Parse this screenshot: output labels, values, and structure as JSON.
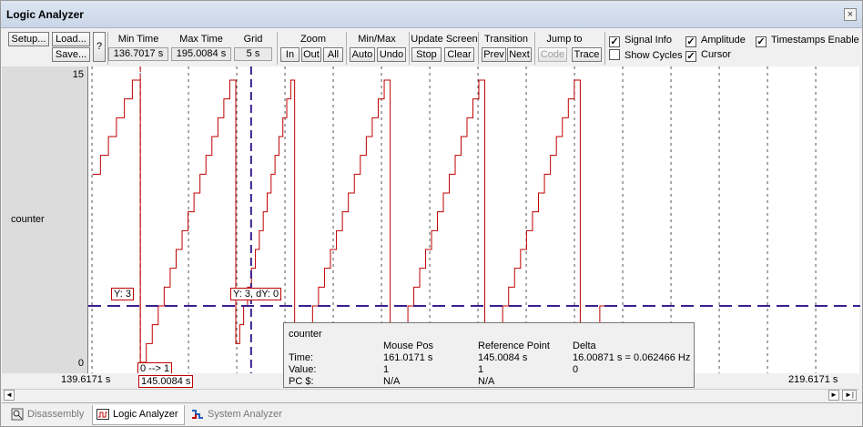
{
  "window": {
    "title": "Logic Analyzer",
    "close": "×"
  },
  "toolbar": {
    "setup": "Setup...",
    "load": "Load...",
    "save": "Save...",
    "help": "?",
    "min_time_label": "Min Time",
    "min_time": "136.7017 s",
    "max_time_label": "Max Time",
    "max_time": "195.0084 s",
    "grid_label": "Grid",
    "grid": "5 s",
    "zoom_label": "Zoom",
    "zoom_in": "In",
    "zoom_out": "Out",
    "zoom_all": "All",
    "minmax_label": "Min/Max",
    "auto": "Auto",
    "undo": "Undo",
    "update_label": "Update Screen",
    "stop": "Stop",
    "clear": "Clear",
    "transition_label": "Transition",
    "prev": "Prev",
    "next": "Next",
    "jump_label": "Jump to",
    "code": "Code",
    "trace": "Trace",
    "signal_info": "Signal Info",
    "amplitude": "Amplitude",
    "timestamps": "Timestamps Enable",
    "show_cycles": "Show Cycles",
    "cursor": "Cursor",
    "checked": "✓"
  },
  "signal": {
    "name": "counter",
    "max": "15",
    "min": "0"
  },
  "time_axis": {
    "left": "139.6171 s",
    "right": "219.6171 s",
    "cursor_time": "145.0084 s"
  },
  "markers": {
    "y_ref": "Y: 3",
    "y_mouse": "Y: 3, dY: 0",
    "transition": "0 --> 1"
  },
  "info": {
    "signal": "counter",
    "h_mouse": "Mouse Pos",
    "h_ref": "Reference Point",
    "h_delta": "Delta",
    "r_time": "Time:",
    "r_value": "Value:",
    "r_pc": "PC $:",
    "time_mouse": "161.0171 s",
    "time_ref": "145.0084 s",
    "time_delta": "16.00871 s = 0.062466 Hz",
    "value_mouse": "1",
    "value_ref": "1",
    "value_delta": "0",
    "pc_mouse": "N/A",
    "pc_ref": "N/A"
  },
  "scroll": {
    "left": "◄",
    "right": "►",
    "end": "►|"
  },
  "tabs": [
    {
      "label": "Disassembly"
    },
    {
      "label": "Logic Analyzer"
    },
    {
      "label": "System Analyzer"
    }
  ],
  "colors": {
    "signal": "#c00000",
    "cursor": "#3a1f8f",
    "grid": "#555555"
  },
  "chart_data": {
    "type": "line",
    "series": [
      {
        "name": "counter",
        "ramps": [
          {
            "start": 140.05,
            "end": 145.0084,
            "from": 10,
            "to": 15
          },
          {
            "start": 145.0084,
            "end": 154.9,
            "from": 0,
            "to": 15
          },
          {
            "start": 154.9,
            "end": 161.0,
            "from": 1,
            "to": 15
          },
          {
            "start": 161.0,
            "end": 170.9,
            "from": 0,
            "to": 15
          },
          {
            "start": 170.9,
            "end": 180.7,
            "from": 0,
            "to": 15
          },
          {
            "start": 180.7,
            "end": 190.6,
            "from": 0,
            "to": 15
          },
          {
            "start": 190.6,
            "end": 193.3,
            "from": 0,
            "to": 3
          }
        ]
      }
    ],
    "xlim": [
      139.6171,
      219.6171
    ],
    "ylim": [
      0,
      15
    ],
    "reference_time": 145.0084,
    "mouse_time": 161.0171,
    "value_line": 3,
    "grid_step": 5
  }
}
